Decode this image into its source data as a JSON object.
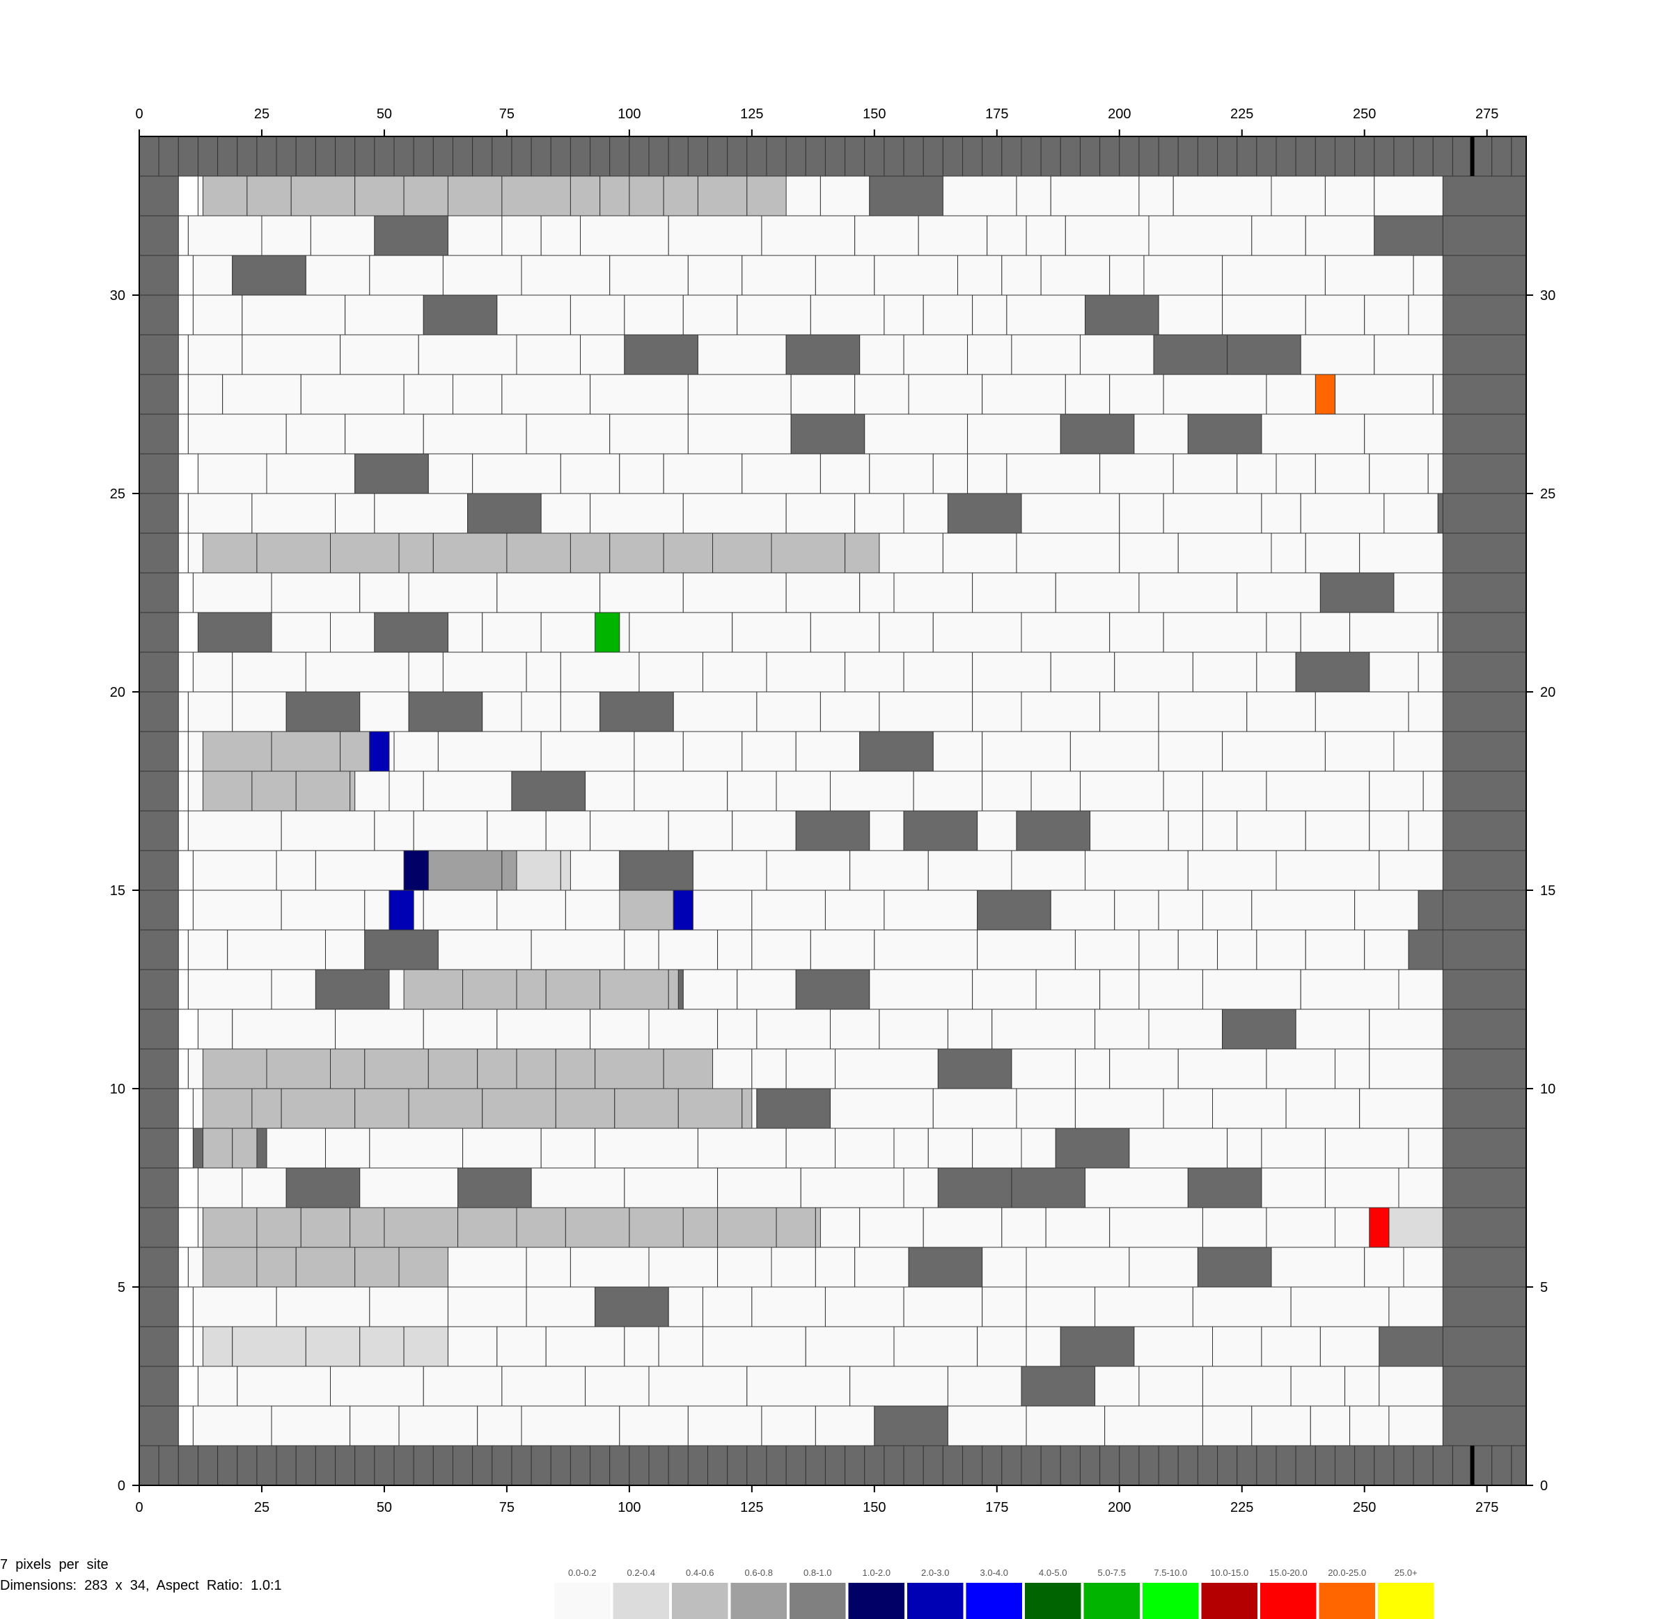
{
  "chart_data": {
    "type": "heatmap",
    "title": "",
    "xlabel": "",
    "ylabel": "",
    "xlim": [
      0,
      283
    ],
    "ylim": [
      0,
      34
    ],
    "x_ticks": [
      0,
      25,
      50,
      75,
      100,
      125,
      150,
      175,
      200,
      225,
      250,
      275
    ],
    "y_ticks": [
      0,
      5,
      10,
      15,
      20,
      25,
      30
    ],
    "grid": false,
    "legend": {
      "placement": "bottom-center",
      "bins": [
        {
          "label": "0.0-0.2",
          "color": "#f9f9f9"
        },
        {
          "label": "0.2-0.4",
          "color": "#dcdcdc"
        },
        {
          "label": "0.4-0.6",
          "color": "#bebebe"
        },
        {
          "label": "0.6-0.8",
          "color": "#a0a0a0"
        },
        {
          "label": "0.8-1.0",
          "color": "#808080"
        },
        {
          "label": "1.0-2.0",
          "color": "#000066"
        },
        {
          "label": "2.0-3.0",
          "color": "#0000b4"
        },
        {
          "label": "3.0-4.0",
          "color": "#0000ff"
        },
        {
          "label": "4.0-5.0",
          "color": "#006400"
        },
        {
          "label": "5.0-7.5",
          "color": "#00b400"
        },
        {
          "label": "7.5-10.0",
          "color": "#00ff00"
        },
        {
          "label": "10.0-15.0",
          "color": "#b40000"
        },
        {
          "label": "15.0-20.0",
          "color": "#ff0000"
        },
        {
          "label": "20.0-25.0",
          "color": "#ff6600"
        },
        {
          "label": "25.0+",
          "color": "#ffff00"
        }
      ]
    },
    "fixed_color": "#6a6a6a",
    "highlighted_cells": [
      {
        "x": 93,
        "y": 21,
        "w": 5,
        "bin": "5.0-7.5"
      },
      {
        "x": 240,
        "y": 27,
        "w": 4,
        "bin": "20.0-25.0"
      },
      {
        "x": 251,
        "y": 6,
        "w": 4,
        "bin": "15.0-20.0"
      },
      {
        "x": 47,
        "y": 18,
        "w": 4,
        "bin": "2.0-3.0"
      },
      {
        "x": 54,
        "y": 15,
        "w": 5,
        "bin": "1.0-2.0"
      },
      {
        "x": 51,
        "y": 14,
        "w": 5,
        "bin": "2.0-3.0"
      },
      {
        "x": 109,
        "y": 14,
        "w": 4,
        "bin": "2.0-3.0"
      }
    ],
    "graded_bands": [
      {
        "y": 32,
        "x_from": 13,
        "x_to": 132,
        "bin": "0.4-0.6"
      },
      {
        "y": 23,
        "x_from": 13,
        "x_to": 151,
        "bin": "0.4-0.6"
      },
      {
        "y": 18,
        "x_from": 13,
        "x_to": 47,
        "bin": "0.4-0.6"
      },
      {
        "y": 17,
        "x_from": 13,
        "x_to": 44,
        "bin": "0.4-0.6"
      },
      {
        "y": 15,
        "x_from": 59,
        "x_to": 77,
        "bin": "0.6-0.8"
      },
      {
        "y": 15,
        "x_from": 77,
        "x_to": 88,
        "bin": "0.2-0.4"
      },
      {
        "y": 14,
        "x_from": 98,
        "x_to": 109,
        "bin": "0.4-0.6"
      },
      {
        "y": 12,
        "x_from": 54,
        "x_to": 110,
        "bin": "0.4-0.6"
      },
      {
        "y": 10,
        "x_from": 13,
        "x_to": 117,
        "bin": "0.4-0.6"
      },
      {
        "y": 9,
        "x_from": 13,
        "x_to": 125,
        "bin": "0.4-0.6"
      },
      {
        "y": 8,
        "x_from": 13,
        "x_to": 24,
        "bin": "0.4-0.6"
      },
      {
        "y": 6,
        "x_from": 13,
        "x_to": 139,
        "bin": "0.4-0.6"
      },
      {
        "y": 6,
        "x_from": 255,
        "x_to": 266,
        "bin": "0.2-0.4"
      },
      {
        "y": 5,
        "x_from": 13,
        "x_to": 63,
        "bin": "0.4-0.6"
      },
      {
        "y": 3,
        "x_from": 13,
        "x_to": 63,
        "bin": "0.2-0.4"
      }
    ],
    "seed": 20240611
  },
  "info": {
    "line1": "7  pixels  per  site",
    "line2": "Dimensions:  283  x  34,  Aspect  Ratio:  1.0:1"
  }
}
